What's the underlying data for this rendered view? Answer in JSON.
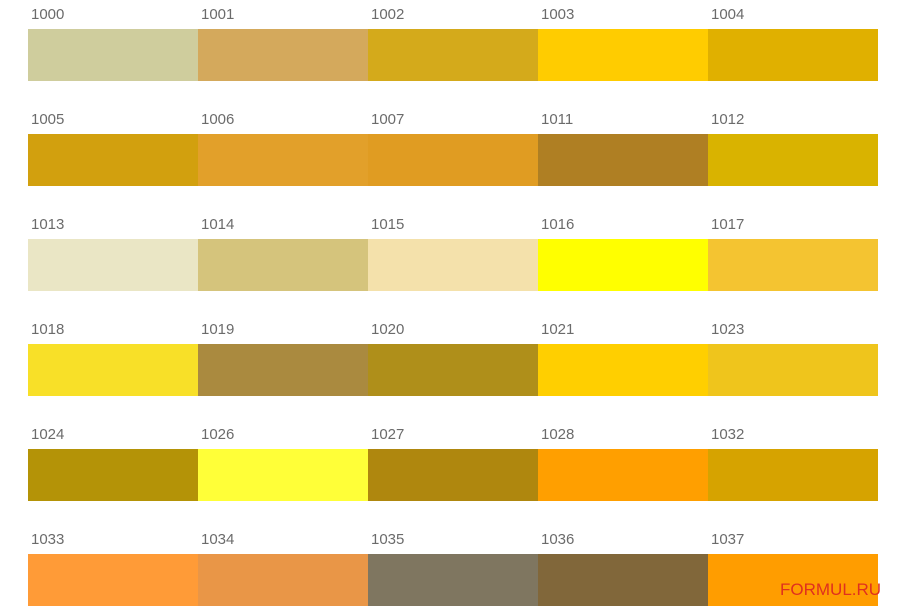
{
  "swatches": [
    {
      "code": "1000",
      "color": "#cfcd9d"
    },
    {
      "code": "1001",
      "color": "#d4a95c"
    },
    {
      "code": "1002",
      "color": "#d4aa1b"
    },
    {
      "code": "1003",
      "color": "#ffcc00"
    },
    {
      "code": "1004",
      "color": "#e0b000"
    },
    {
      "code": "1005",
      "color": "#d2a00e"
    },
    {
      "code": "1006",
      "color": "#e2a02a"
    },
    {
      "code": "1007",
      "color": "#e09c22"
    },
    {
      "code": "1011",
      "color": "#af7f23"
    },
    {
      "code": "1012",
      "color": "#d9b300"
    },
    {
      "code": "1013",
      "color": "#eae6c5"
    },
    {
      "code": "1014",
      "color": "#d5c47c"
    },
    {
      "code": "1015",
      "color": "#f4e1ab"
    },
    {
      "code": "1016",
      "color": "#ffff00"
    },
    {
      "code": "1017",
      "color": "#f4c431"
    },
    {
      "code": "1018",
      "color": "#f8e028"
    },
    {
      "code": "1019",
      "color": "#aa8a3f"
    },
    {
      "code": "1020",
      "color": "#af8f1a"
    },
    {
      "code": "1021",
      "color": "#ffcf00"
    },
    {
      "code": "1023",
      "color": "#efc51c"
    },
    {
      "code": "1024",
      "color": "#b49307"
    },
    {
      "code": "1026",
      "color": "#ffff38"
    },
    {
      "code": "1027",
      "color": "#af870e"
    },
    {
      "code": "1028",
      "color": "#ff9f00"
    },
    {
      "code": "1032",
      "color": "#d6a300"
    },
    {
      "code": "1033",
      "color": "#ff9b37"
    },
    {
      "code": "1034",
      "color": "#e99647"
    },
    {
      "code": "1035",
      "color": "#7f7660"
    },
    {
      "code": "1036",
      "color": "#81673a"
    },
    {
      "code": "1037",
      "color": "#ff9d00"
    }
  ],
  "watermark": "FORMUL.RU"
}
